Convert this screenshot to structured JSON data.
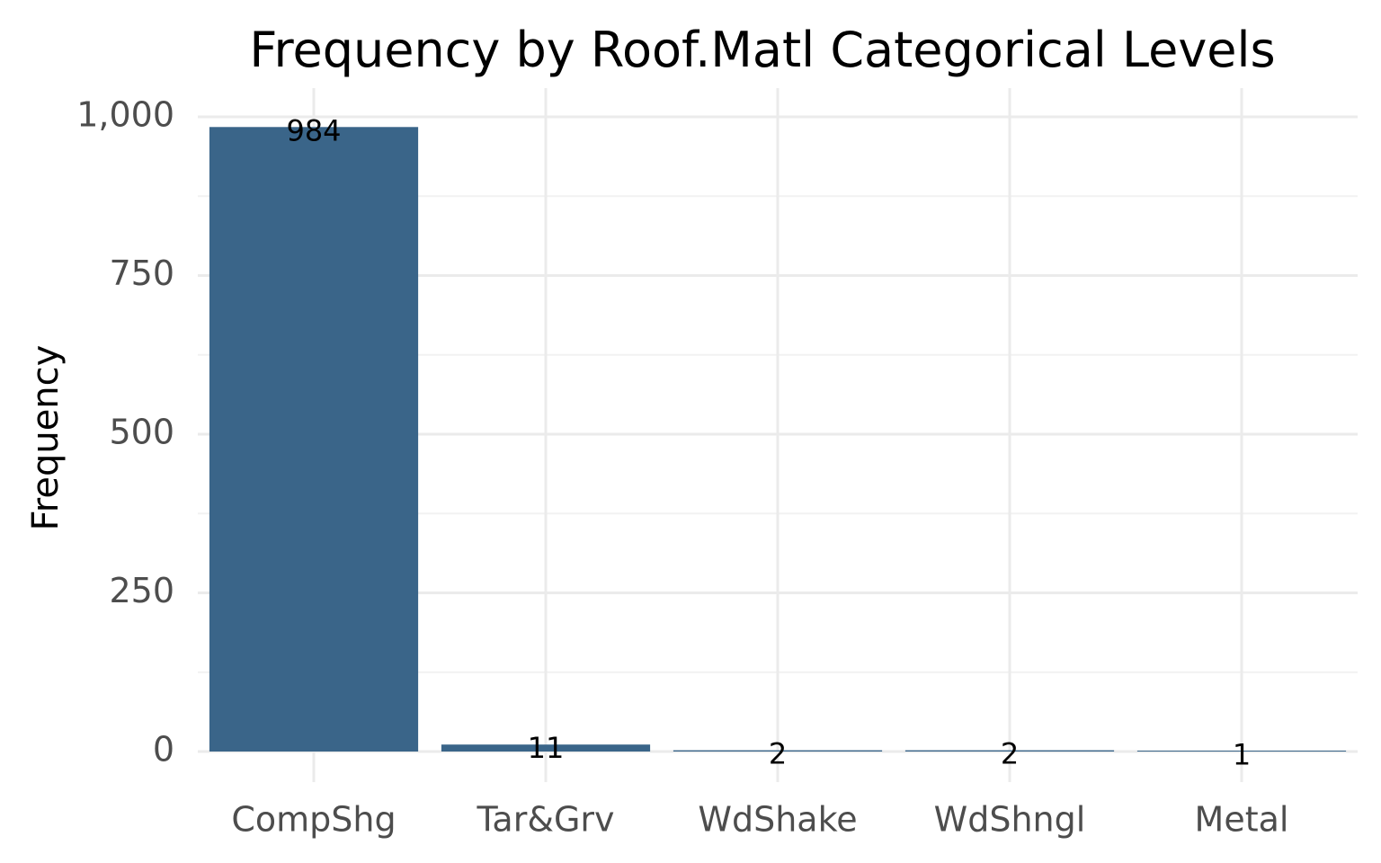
{
  "chart_data": {
    "type": "bar",
    "title": "Frequency by Roof.Matl Categorical Levels",
    "xlabel": "",
    "ylabel": "Frequency",
    "categories": [
      "CompShg",
      "Tar&Grv",
      "WdShake",
      "WdShngl",
      "Metal"
    ],
    "values": [
      984,
      11,
      2,
      2,
      1
    ],
    "data_labels": [
      "984",
      "11",
      "2",
      "2",
      "1"
    ],
    "ylim": [
      0,
      1000
    ],
    "yticks": [
      0,
      250,
      500,
      750,
      1000
    ],
    "ytick_labels": [
      "0",
      "250",
      "500",
      "750",
      "1,000"
    ],
    "bar_color": "#3a6589",
    "grid": true,
    "legend": "none"
  }
}
